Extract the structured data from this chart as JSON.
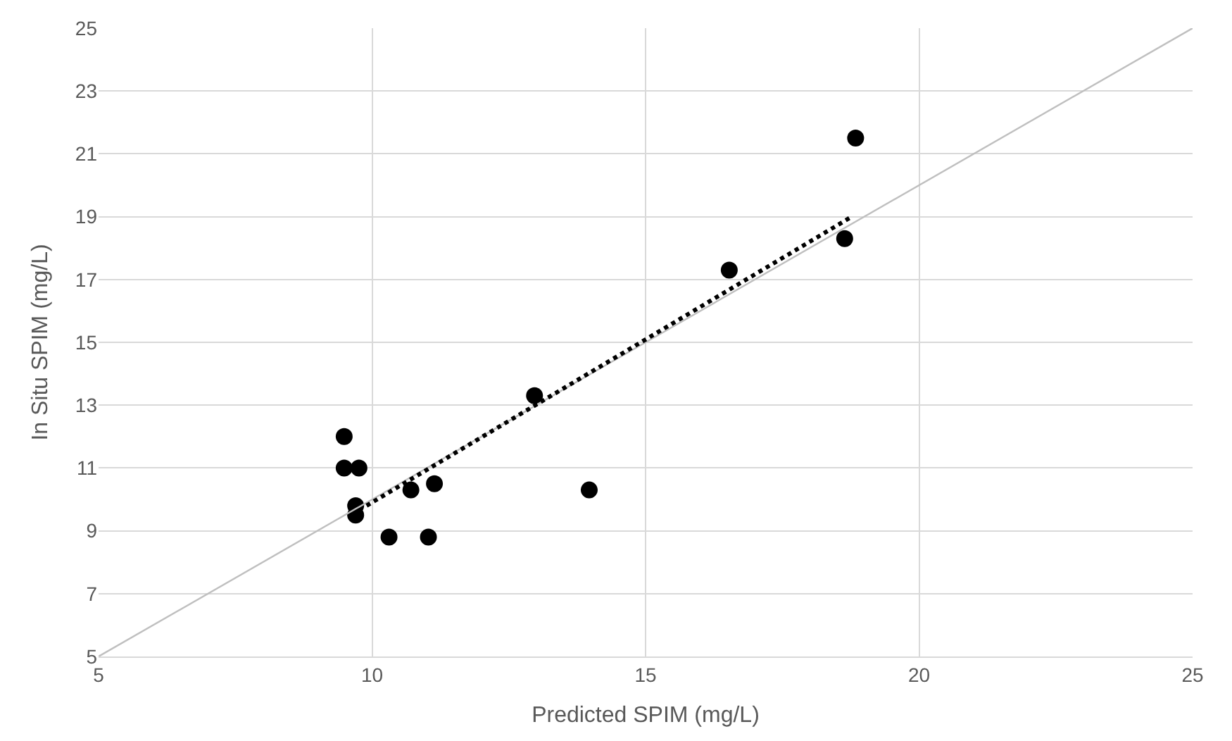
{
  "chart_data": {
    "type": "scatter",
    "xlabel": "Predicted SPIM (mg/L)",
    "ylabel": "In Situ SPIM (mg/L)",
    "xlim": [
      5,
      25
    ],
    "xticks": [
      5,
      10,
      15,
      20,
      25
    ],
    "ylim": [
      5,
      25
    ],
    "yticks": [
      5,
      7,
      9,
      11,
      13,
      15,
      17,
      19,
      21,
      23,
      25
    ],
    "grid": true,
    "series": [
      {
        "color": "#000000",
        "marker": "circle",
        "x": [
          9.49,
          9.49,
          9.76,
          9.7,
          9.7,
          10.71,
          11.14,
          10.31,
          11.03,
          13.97,
          12.97,
          16.53,
          18.84,
          18.64
        ],
        "values": [
          12.0,
          11.0,
          11.0,
          9.8,
          9.5,
          10.3,
          10.5,
          8.8,
          8.8,
          10.3,
          13.3,
          17.3,
          21.5,
          18.3
        ]
      },
      {
        "type": "line",
        "color": "#bfbfbf",
        "line_style": "solid",
        "marker": "none",
        "x": [
          5,
          25
        ],
        "values": [
          5,
          25
        ]
      },
      {
        "type": "line",
        "color": "#000000",
        "line_style": "dotted",
        "marker": "none",
        "x": [
          9.9,
          18.77
        ],
        "values": [
          9.8,
          19.0
        ]
      }
    ]
  }
}
